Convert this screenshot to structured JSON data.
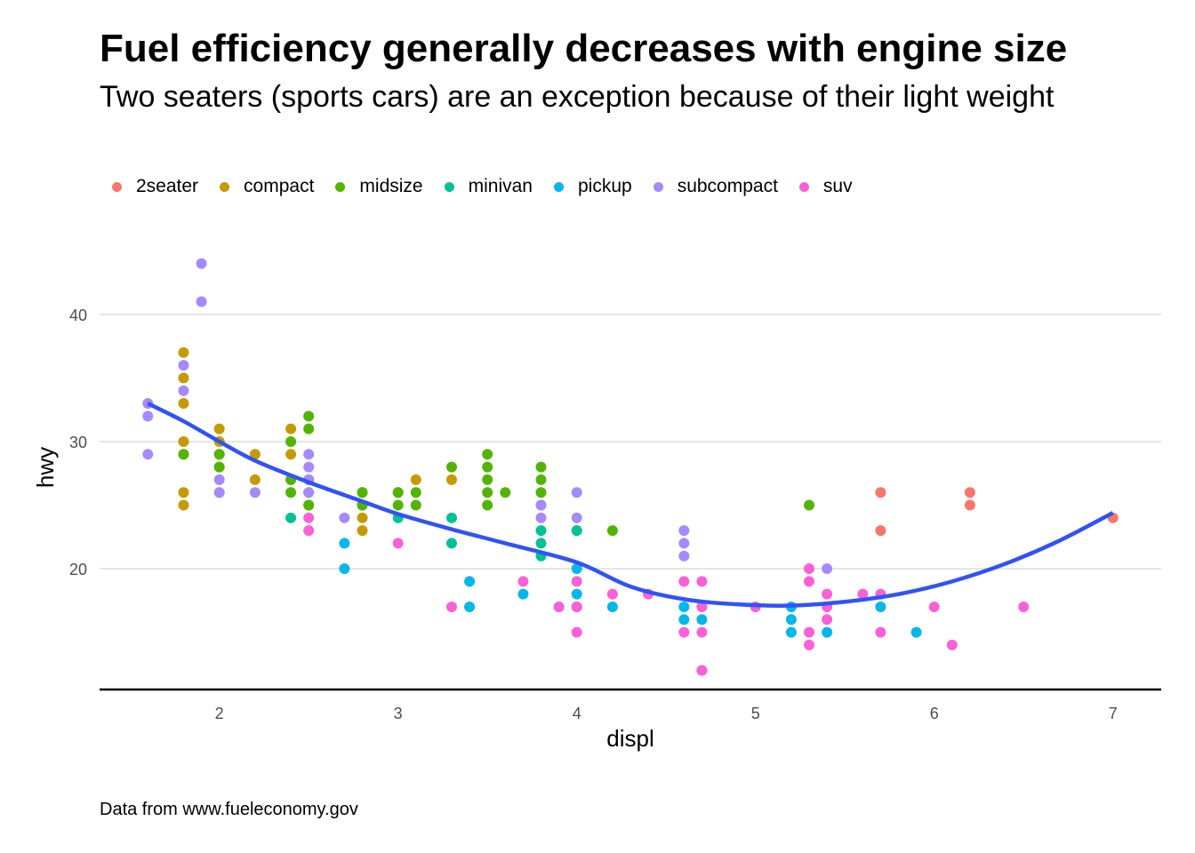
{
  "chart_data": {
    "type": "scatter",
    "title": "Fuel efficiency generally decreases with engine size",
    "subtitle": "Two seaters (sports cars) are an exception because of their light weight",
    "caption": "Data from www.fueleconomy.gov",
    "xlabel": "displ",
    "ylabel": "hwy",
    "xlim": [
      1.33,
      7.27
    ],
    "ylim": [
      10.5,
      46
    ],
    "xticks": [
      2,
      3,
      4,
      5,
      6,
      7
    ],
    "yticks": [
      20,
      30,
      40
    ],
    "grid": "horizontal major",
    "legend_position": "top",
    "series": [
      {
        "name": "2seater",
        "color": "#F8766D",
        "points": [
          [
            5.7,
            26
          ],
          [
            5.7,
            23
          ],
          [
            6.2,
            26
          ],
          [
            6.2,
            25
          ],
          [
            7.0,
            24
          ]
        ]
      },
      {
        "name": "compact",
        "color": "#C49A00",
        "points": [
          [
            1.8,
            37
          ],
          [
            1.8,
            35
          ],
          [
            1.8,
            33
          ],
          [
            1.8,
            30
          ],
          [
            1.8,
            29
          ],
          [
            1.8,
            26
          ],
          [
            1.8,
            25
          ],
          [
            2.0,
            31
          ],
          [
            2.0,
            30
          ],
          [
            2.0,
            29
          ],
          [
            2.0,
            28
          ],
          [
            2.0,
            26
          ],
          [
            2.2,
            29
          ],
          [
            2.2,
            27
          ],
          [
            2.4,
            31
          ],
          [
            2.4,
            29
          ],
          [
            2.4,
            27
          ],
          [
            2.5,
            27
          ],
          [
            2.5,
            25
          ],
          [
            2.8,
            26
          ],
          [
            2.8,
            25
          ],
          [
            2.8,
            24
          ],
          [
            2.8,
            23
          ],
          [
            3.0,
            26
          ],
          [
            3.1,
            27
          ],
          [
            3.3,
            27
          ]
        ]
      },
      {
        "name": "midsize",
        "color": "#53B400",
        "points": [
          [
            1.8,
            29
          ],
          [
            2.0,
            29
          ],
          [
            2.0,
            28
          ],
          [
            2.4,
            30
          ],
          [
            2.4,
            27
          ],
          [
            2.4,
            26
          ],
          [
            2.5,
            32
          ],
          [
            2.5,
            31
          ],
          [
            2.5,
            27
          ],
          [
            2.5,
            26
          ],
          [
            2.5,
            25
          ],
          [
            2.8,
            26
          ],
          [
            2.8,
            25
          ],
          [
            3.0,
            26
          ],
          [
            3.0,
            25
          ],
          [
            3.1,
            26
          ],
          [
            3.1,
            25
          ],
          [
            3.3,
            28
          ],
          [
            3.5,
            29
          ],
          [
            3.5,
            28
          ],
          [
            3.5,
            27
          ],
          [
            3.5,
            26
          ],
          [
            3.5,
            25
          ],
          [
            3.6,
            26
          ],
          [
            3.8,
            28
          ],
          [
            3.8,
            27
          ],
          [
            3.8,
            26
          ],
          [
            3.8,
            25
          ],
          [
            4.0,
            23
          ],
          [
            4.2,
            23
          ],
          [
            5.3,
            25
          ]
        ]
      },
      {
        "name": "minivan",
        "color": "#00C094",
        "points": [
          [
            2.4,
            24
          ],
          [
            3.0,
            24
          ],
          [
            3.3,
            24
          ],
          [
            3.3,
            22
          ],
          [
            3.8,
            23
          ],
          [
            3.8,
            22
          ],
          [
            3.8,
            21
          ],
          [
            4.0,
            23
          ]
        ]
      },
      {
        "name": "pickup",
        "color": "#00B6EB",
        "points": [
          [
            2.7,
            22
          ],
          [
            2.7,
            20
          ],
          [
            3.4,
            19
          ],
          [
            3.4,
            17
          ],
          [
            3.7,
            18
          ],
          [
            3.9,
            17
          ],
          [
            4.0,
            20
          ],
          [
            4.0,
            18
          ],
          [
            4.0,
            17
          ],
          [
            4.2,
            17
          ],
          [
            4.6,
            17
          ],
          [
            4.6,
            16
          ],
          [
            4.7,
            17
          ],
          [
            4.7,
            16
          ],
          [
            4.7,
            12
          ],
          [
            5.2,
            17
          ],
          [
            5.2,
            16
          ],
          [
            5.2,
            15
          ],
          [
            5.4,
            15
          ],
          [
            5.7,
            17
          ],
          [
            5.9,
            15
          ]
        ]
      },
      {
        "name": "subcompact",
        "color": "#A58AFF",
        "points": [
          [
            1.6,
            33
          ],
          [
            1.6,
            32
          ],
          [
            1.6,
            29
          ],
          [
            1.8,
            36
          ],
          [
            1.8,
            34
          ],
          [
            1.9,
            44
          ],
          [
            1.9,
            41
          ],
          [
            2.0,
            27
          ],
          [
            2.0,
            26
          ],
          [
            2.2,
            26
          ],
          [
            2.5,
            29
          ],
          [
            2.5,
            28
          ],
          [
            2.5,
            27
          ],
          [
            2.5,
            26
          ],
          [
            2.7,
            24
          ],
          [
            3.8,
            25
          ],
          [
            3.8,
            24
          ],
          [
            4.0,
            26
          ],
          [
            4.0,
            24
          ],
          [
            4.6,
            23
          ],
          [
            4.6,
            22
          ],
          [
            4.6,
            21
          ],
          [
            5.4,
            20
          ]
        ]
      },
      {
        "name": "suv",
        "color": "#FB61D7",
        "points": [
          [
            2.5,
            24
          ],
          [
            2.5,
            23
          ],
          [
            3.0,
            22
          ],
          [
            3.3,
            17
          ],
          [
            3.7,
            19
          ],
          [
            3.9,
            17
          ],
          [
            4.0,
            19
          ],
          [
            4.0,
            17
          ],
          [
            4.0,
            15
          ],
          [
            4.2,
            18
          ],
          [
            4.4,
            18
          ],
          [
            4.6,
            19
          ],
          [
            4.6,
            15
          ],
          [
            4.7,
            19
          ],
          [
            4.7,
            17
          ],
          [
            4.7,
            15
          ],
          [
            4.7,
            12
          ],
          [
            5.0,
            17
          ],
          [
            5.3,
            20
          ],
          [
            5.3,
            19
          ],
          [
            5.3,
            15
          ],
          [
            5.3,
            14
          ],
          [
            5.4,
            18
          ],
          [
            5.4,
            17
          ],
          [
            5.4,
            16
          ],
          [
            5.6,
            18
          ],
          [
            5.7,
            18
          ],
          [
            5.7,
            15
          ],
          [
            6.0,
            17
          ],
          [
            6.1,
            14
          ],
          [
            6.5,
            17
          ]
        ]
      }
    ],
    "smooth": {
      "method": "loess",
      "x": [
        1.6,
        1.8,
        2.0,
        2.2,
        2.5,
        2.8,
        3.0,
        3.3,
        3.6,
        4.0,
        4.3,
        4.6,
        4.9,
        5.2,
        5.5,
        5.8,
        6.1,
        6.4,
        6.7,
        7.0
      ],
      "y": [
        33.0,
        31.6,
        30.0,
        28.5,
        26.8,
        25.3,
        24.3,
        23.1,
        22.0,
        20.5,
        18.6,
        17.6,
        17.2,
        17.1,
        17.4,
        18.0,
        19.0,
        20.4,
        22.2,
        24.4
      ]
    }
  }
}
